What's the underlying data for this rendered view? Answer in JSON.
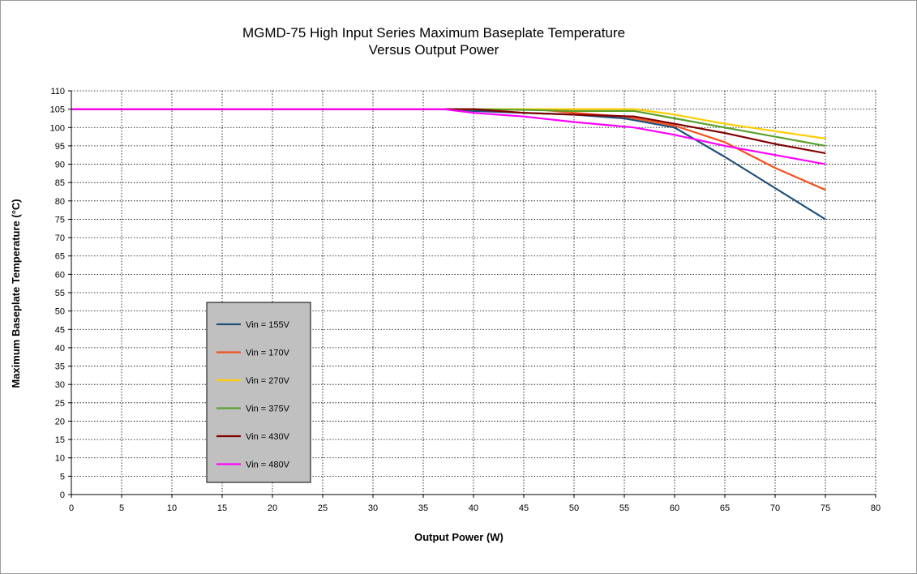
{
  "chart_data": {
    "type": "line",
    "title": "MGMD-75 High Input Series Maximum Baseplate Temperature",
    "subtitle": "Versus Output Power",
    "xlabel": "Output Power (W)",
    "ylabel": "Maximum Baseplate Temperature (°C)",
    "xlim": [
      0,
      80
    ],
    "ylim": [
      0,
      110
    ],
    "x_ticks": [
      0,
      5,
      10,
      15,
      20,
      25,
      30,
      35,
      40,
      45,
      50,
      55,
      60,
      65,
      70,
      75,
      80
    ],
    "y_ticks": [
      0,
      5,
      10,
      15,
      20,
      25,
      30,
      35,
      40,
      45,
      50,
      55,
      60,
      65,
      70,
      75,
      80,
      85,
      90,
      95,
      100,
      105,
      110
    ],
    "grid": true,
    "legend_position": "bottom-left",
    "series": [
      {
        "name": "Vin = 155V",
        "color": "#1f4e79",
        "points": [
          [
            0,
            105
          ],
          [
            37,
            105
          ],
          [
            40,
            104.5
          ],
          [
            45,
            104
          ],
          [
            50,
            103.5
          ],
          [
            55,
            102.5
          ],
          [
            60,
            100
          ],
          [
            65,
            92
          ],
          [
            70,
            83.5
          ],
          [
            75,
            75
          ]
        ]
      },
      {
        "name": "Vin = 170V",
        "color": "#f4511e",
        "points": [
          [
            0,
            105
          ],
          [
            37,
            105
          ],
          [
            40,
            105
          ],
          [
            46,
            105
          ],
          [
            50,
            104
          ],
          [
            55,
            103
          ],
          [
            60,
            100.5
          ],
          [
            65,
            96
          ],
          [
            70,
            89
          ],
          [
            75,
            83
          ]
        ]
      },
      {
        "name": "Vin = 270V",
        "color": "#ffcc00",
        "points": [
          [
            0,
            105
          ],
          [
            37,
            105
          ],
          [
            40,
            105
          ],
          [
            45,
            105
          ],
          [
            50,
            105
          ],
          [
            56,
            105
          ],
          [
            60,
            103.5
          ],
          [
            65,
            101
          ],
          [
            70,
            99
          ],
          [
            75,
            97
          ]
        ]
      },
      {
        "name": "Vin = 375V",
        "color": "#5aa02c",
        "points": [
          [
            0,
            105
          ],
          [
            37,
            105
          ],
          [
            40,
            105
          ],
          [
            45,
            104.8
          ],
          [
            50,
            104.5
          ],
          [
            56,
            104.5
          ],
          [
            60,
            102.5
          ],
          [
            65,
            100
          ],
          [
            70,
            97.5
          ],
          [
            75,
            95
          ]
        ]
      },
      {
        "name": "Vin = 430V",
        "color": "#800000",
        "points": [
          [
            0,
            105
          ],
          [
            37,
            105
          ],
          [
            40,
            105
          ],
          [
            45,
            104
          ],
          [
            50,
            103.5
          ],
          [
            56,
            103
          ],
          [
            60,
            101
          ],
          [
            65,
            98.5
          ],
          [
            70,
            95.5
          ],
          [
            75,
            93
          ]
        ]
      },
      {
        "name": "Vin = 480V",
        "color": "#ff00ff",
        "points": [
          [
            0,
            105
          ],
          [
            37,
            105
          ],
          [
            40,
            104
          ],
          [
            45,
            103
          ],
          [
            50,
            101.5
          ],
          [
            56,
            100
          ],
          [
            60,
            98
          ],
          [
            65,
            95
          ],
          [
            70,
            92.5
          ],
          [
            75,
            90
          ]
        ]
      }
    ]
  }
}
